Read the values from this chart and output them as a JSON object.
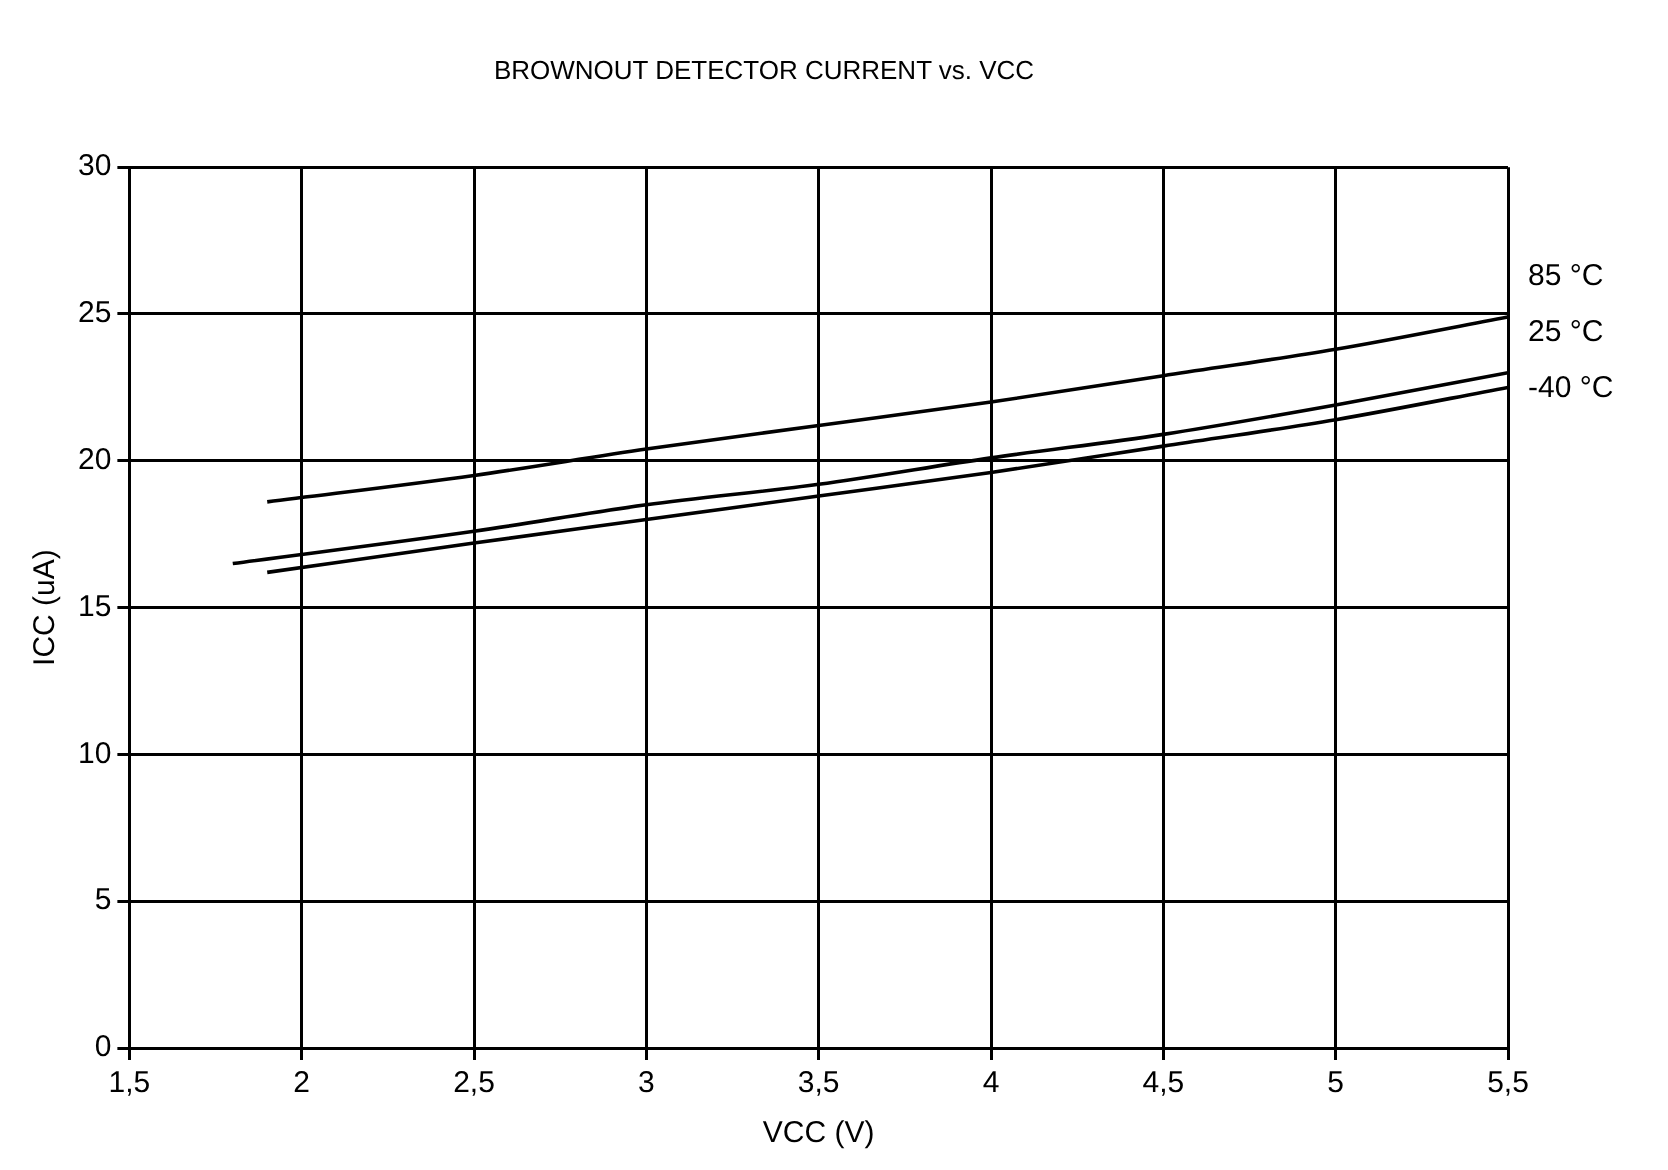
{
  "chart_data": {
    "type": "line",
    "title": "BROWNOUT DETECTOR CURRENT vs. VCC",
    "xlabel": "VCC (V)",
    "ylabel": "ICC (uA)",
    "xlim": [
      1.5,
      5.5
    ],
    "xticks": [
      {
        "value": 1.5,
        "label": "1,5"
      },
      2,
      {
        "value": 2.5,
        "label": "2,5"
      },
      3,
      {
        "value": 3.5,
        "label": "3,5"
      },
      4,
      {
        "value": 4.5,
        "label": "4,5"
      },
      5,
      {
        "value": 5.5,
        "label": "5,5"
      }
    ],
    "ylim": [
      0,
      30
    ],
    "yticks": [
      0,
      5,
      10,
      15,
      20,
      25,
      30
    ],
    "grid": true,
    "legend": false,
    "marker": "none",
    "line_style": "solid",
    "series": [
      {
        "name": "85 °C",
        "color": "#000000",
        "x": [
          1.9,
          2.5,
          3,
          3.5,
          4,
          4.5,
          5,
          5.5
        ],
        "values": [
          18.6,
          19.5,
          20.4,
          21.2,
          22.0,
          22.9,
          23.8,
          24.9
        ]
      },
      {
        "name": "25 °C",
        "color": "#000000",
        "x": [
          1.8,
          2.5,
          3,
          3.5,
          4,
          4.5,
          5,
          5.5
        ],
        "values": [
          16.5,
          17.6,
          18.5,
          19.2,
          20.1,
          20.9,
          21.9,
          23.0
        ]
      },
      {
        "name": "-40 °C",
        "color": "#000000",
        "x": [
          1.9,
          2.5,
          3,
          3.5,
          4,
          4.5,
          5,
          5.5
        ],
        "values": [
          16.2,
          17.2,
          18.0,
          18.8,
          19.6,
          20.5,
          21.4,
          22.5
        ]
      }
    ]
  }
}
